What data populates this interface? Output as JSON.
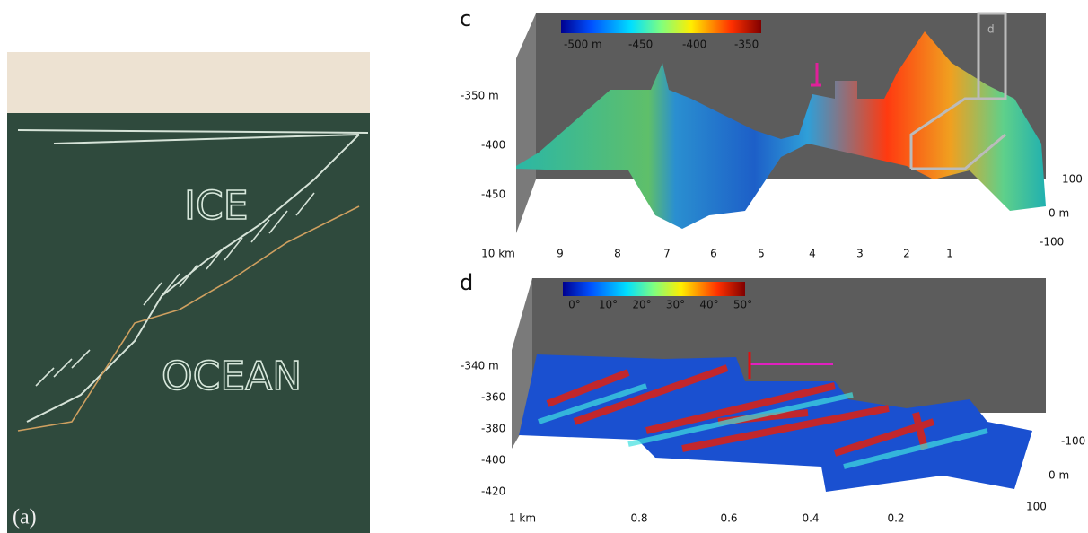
{
  "panel_a": {
    "label": "(a)",
    "chalk_words": [
      "ICE",
      "OCEAN"
    ]
  },
  "panel_c": {
    "label": "c",
    "inset_label": "d",
    "colorbar_ticks": [
      "-500 m",
      "-450",
      "-400",
      "-350"
    ],
    "y_ticks": [
      "-350 m",
      "-400",
      "-450"
    ],
    "x_ticks": [
      "10 km",
      "9",
      "8",
      "7",
      "6",
      "5",
      "4",
      "3",
      "2",
      "1"
    ],
    "cross_ticks": [
      "100",
      "0 m",
      "-100"
    ]
  },
  "panel_d": {
    "label": "d",
    "colorbar_ticks": [
      "0°",
      "10°",
      "20°",
      "30°",
      "40°",
      "50°"
    ],
    "y_ticks": [
      "-340 m",
      "-360",
      "-380",
      "-400",
      "-420"
    ],
    "x_ticks": [
      "1 km",
      "0.8",
      "0.6",
      "0.4",
      "0.2"
    ],
    "cross_ticks": [
      "-100",
      "0 m",
      "100"
    ]
  }
}
